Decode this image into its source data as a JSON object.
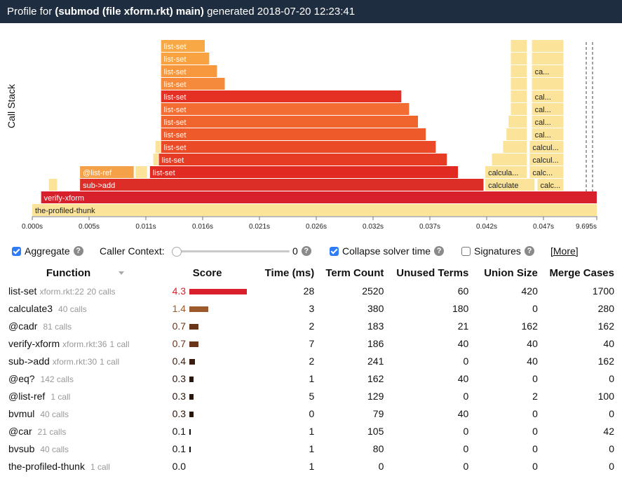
{
  "title": {
    "prefix": "Profile for",
    "subject": "(submod (file xform.rkt) main)",
    "suffix": "generated 2018-07-20 12:23:41"
  },
  "flame": {
    "axis_label": "Call Stack",
    "ticks": [
      "0.000s",
      "0.005s",
      "0.011s",
      "0.016s",
      "0.021s",
      "0.026s",
      "0.032s",
      "0.037s",
      "0.042s",
      "0.047s",
      "9.695s"
    ],
    "frames": [
      {
        "label": "the-profiled-thunk",
        "start": 0.0,
        "end": 9.695,
        "depth": 0,
        "color": "#fbe49a"
      },
      {
        "label": "verify-xform",
        "start": 0.0008,
        "end": 9.69,
        "depth": 1,
        "color": "#d7202b"
      },
      {
        "label": "",
        "start": 0.0015,
        "end": 0.0023,
        "depth": 2,
        "color": "#fbe49a"
      },
      {
        "label": "sub->add",
        "start": 0.0043,
        "end": 0.0407,
        "depth": 2,
        "color": "#dc2e27"
      },
      {
        "label": "calculate",
        "start": 0.0408,
        "end": 0.0453,
        "depth": 2,
        "color": "#fbe49a"
      },
      {
        "label": "calc...",
        "start": 0.0455,
        "end": 0.0479,
        "depth": 2,
        "color": "#fbe49a"
      },
      {
        "label": "@list-ref",
        "start": 0.0043,
        "end": 0.0092,
        "depth": 3,
        "color": "#f5a14a"
      },
      {
        "label": "",
        "start": 0.0093,
        "end": 0.0104,
        "depth": 3,
        "color": "#fbe49a"
      },
      {
        "label": "list-set",
        "start": 0.0106,
        "end": 0.0384,
        "depth": 3,
        "color": "#e12b22"
      },
      {
        "label": "calcula...",
        "start": 0.0408,
        "end": 0.0446,
        "depth": 3,
        "color": "#fbe49a"
      },
      {
        "label": "calc...",
        "start": 0.0448,
        "end": 0.0479,
        "depth": 3,
        "color": "#fbe49a"
      },
      {
        "label": "",
        "start": 0.0109,
        "end": 0.0114,
        "depth": 4,
        "color": "#fbe49a"
      },
      {
        "label": "list-set",
        "start": 0.0114,
        "end": 0.0374,
        "depth": 4,
        "color": "#e63c24"
      },
      {
        "label": "",
        "start": 0.0414,
        "end": 0.0446,
        "depth": 4,
        "color": "#fbe49a"
      },
      {
        "label": "calcul...",
        "start": 0.0448,
        "end": 0.0479,
        "depth": 4,
        "color": "#fbe49a"
      },
      {
        "label": "",
        "start": 0.0111,
        "end": 0.0116,
        "depth": 5,
        "color": "#fbe49a"
      },
      {
        "label": "list-set",
        "start": 0.0116,
        "end": 0.0364,
        "depth": 5,
        "color": "#ea4a26"
      },
      {
        "label": "",
        "start": 0.0424,
        "end": 0.0446,
        "depth": 5,
        "color": "#fbe49a"
      },
      {
        "label": "calcul...",
        "start": 0.0448,
        "end": 0.0479,
        "depth": 5,
        "color": "#fbe49a"
      },
      {
        "label": "list-set",
        "start": 0.0116,
        "end": 0.0355,
        "depth": 6,
        "color": "#ee5a2a"
      },
      {
        "label": "",
        "start": 0.0427,
        "end": 0.0446,
        "depth": 6,
        "color": "#fbe49a"
      },
      {
        "label": "cal...",
        "start": 0.045,
        "end": 0.0479,
        "depth": 6,
        "color": "#fbe49a"
      },
      {
        "label": "list-set",
        "start": 0.0116,
        "end": 0.0348,
        "depth": 7,
        "color": "#f0642d"
      },
      {
        "label": "",
        "start": 0.0429,
        "end": 0.0446,
        "depth": 7,
        "color": "#fbe49a"
      },
      {
        "label": "cal...",
        "start": 0.045,
        "end": 0.0479,
        "depth": 7,
        "color": "#fbe49a"
      },
      {
        "label": "list-set",
        "start": 0.0116,
        "end": 0.034,
        "depth": 8,
        "color": "#f36c31"
      },
      {
        "label": "",
        "start": 0.0431,
        "end": 0.0446,
        "depth": 8,
        "color": "#fbe49a"
      },
      {
        "label": "cal...",
        "start": 0.045,
        "end": 0.0479,
        "depth": 8,
        "color": "#fbe49a"
      },
      {
        "label": "list-set",
        "start": 0.0116,
        "end": 0.0333,
        "depth": 9,
        "color": "#e53024"
      },
      {
        "label": "",
        "start": 0.0431,
        "end": 0.0446,
        "depth": 9,
        "color": "#fbe49a"
      },
      {
        "label": "cal...",
        "start": 0.045,
        "end": 0.0479,
        "depth": 9,
        "color": "#fbe49a"
      },
      {
        "label": "list-set",
        "start": 0.0116,
        "end": 0.0174,
        "depth": 10,
        "color": "#f68a3c"
      },
      {
        "label": "",
        "start": 0.0431,
        "end": 0.0446,
        "depth": 10,
        "color": "#fbe49a"
      },
      {
        "label": "",
        "start": 0.045,
        "end": 0.0479,
        "depth": 10,
        "color": "#fbe49a"
      },
      {
        "label": "list-set",
        "start": 0.0116,
        "end": 0.0167,
        "depth": 11,
        "color": "#f7983f"
      },
      {
        "label": "",
        "start": 0.0431,
        "end": 0.0446,
        "depth": 11,
        "color": "#fbe49a"
      },
      {
        "label": "ca...",
        "start": 0.045,
        "end": 0.0479,
        "depth": 11,
        "color": "#fbe49a"
      },
      {
        "label": "list-set",
        "start": 0.0116,
        "end": 0.016,
        "depth": 12,
        "color": "#f8a242"
      },
      {
        "label": "",
        "start": 0.0431,
        "end": 0.0446,
        "depth": 12,
        "color": "#fbe49a"
      },
      {
        "label": "",
        "start": 0.045,
        "end": 0.0479,
        "depth": 12,
        "color": "#fbe49a"
      },
      {
        "label": "list-set",
        "start": 0.0116,
        "end": 0.0156,
        "depth": 13,
        "color": "#f8a844"
      },
      {
        "label": "",
        "start": 0.0431,
        "end": 0.0446,
        "depth": 13,
        "color": "#fbe49a"
      },
      {
        "label": "",
        "start": 0.045,
        "end": 0.0479,
        "depth": 13,
        "color": "#fbe49a"
      }
    ]
  },
  "controls": {
    "aggregate_label": "Aggregate",
    "caller_context_label": "Caller Context:",
    "caller_context_value": "0",
    "collapse_label": "Collapse solver time",
    "signatures_label": "Signatures",
    "more_label": "[More]"
  },
  "table": {
    "headers": {
      "function": "Function",
      "score": "Score",
      "time": "Time (ms)",
      "terms": "Term Count",
      "unused": "Unused Terms",
      "union": "Union Size",
      "merge": "Merge Cases"
    },
    "rows": [
      {
        "name": "list-set",
        "source": "xform.rkt:22",
        "calls": "20 calls",
        "score": "4.3",
        "score_value": 4.3,
        "score_color": "#d7202b",
        "time": "28",
        "terms": "2520",
        "unused": "60",
        "union": "420",
        "merge": "1700"
      },
      {
        "name": "calculate3",
        "source": "",
        "calls": "40 calls",
        "score": "1.4",
        "score_value": 1.4,
        "score_color": "#9c5a2c",
        "time": "3",
        "terms": "380",
        "unused": "180",
        "union": "0",
        "merge": "280"
      },
      {
        "name": "@cadr",
        "source": "",
        "calls": "81 calls",
        "score": "0.7",
        "score_value": 0.7,
        "score_color": "#6b3418",
        "time": "2",
        "terms": "183",
        "unused": "21",
        "union": "162",
        "merge": "162"
      },
      {
        "name": "verify-xform",
        "source": "xform.rkt:36",
        "calls": "1 call",
        "score": "0.7",
        "score_value": 0.7,
        "score_color": "#6b3418",
        "time": "7",
        "terms": "186",
        "unused": "40",
        "union": "40",
        "merge": "40"
      },
      {
        "name": "sub->add",
        "source": "xform.rkt:30",
        "calls": "1 call",
        "score": "0.4",
        "score_value": 0.4,
        "score_color": "#3a1e10",
        "time": "2",
        "terms": "241",
        "unused": "0",
        "union": "40",
        "merge": "162"
      },
      {
        "name": "@eq?",
        "source": "",
        "calls": "142 calls",
        "score": "0.3",
        "score_value": 0.3,
        "score_color": "#2a150b",
        "time": "1",
        "terms": "162",
        "unused": "40",
        "union": "0",
        "merge": "0"
      },
      {
        "name": "@list-ref",
        "source": "",
        "calls": "1 call",
        "score": "0.3",
        "score_value": 0.3,
        "score_color": "#2a150b",
        "time": "5",
        "terms": "129",
        "unused": "0",
        "union": "2",
        "merge": "100"
      },
      {
        "name": "bvmul",
        "source": "",
        "calls": "40 calls",
        "score": "0.3",
        "score_value": 0.3,
        "score_color": "#2a150b",
        "time": "0",
        "terms": "79",
        "unused": "40",
        "union": "0",
        "merge": "0"
      },
      {
        "name": "@car",
        "source": "",
        "calls": "21 calls",
        "score": "0.1",
        "score_value": 0.1,
        "score_color": "#111111",
        "time": "1",
        "terms": "105",
        "unused": "0",
        "union": "0",
        "merge": "42"
      },
      {
        "name": "bvsub",
        "source": "",
        "calls": "40 calls",
        "score": "0.1",
        "score_value": 0.1,
        "score_color": "#111111",
        "time": "1",
        "terms": "80",
        "unused": "0",
        "union": "0",
        "merge": "0"
      },
      {
        "name": "the-profiled-thunk",
        "source": "",
        "calls": "1 call",
        "score": "0.0",
        "score_value": 0.0,
        "score_color": "#111111",
        "time": "1",
        "terms": "0",
        "unused": "0",
        "union": "0",
        "merge": "0"
      }
    ]
  }
}
